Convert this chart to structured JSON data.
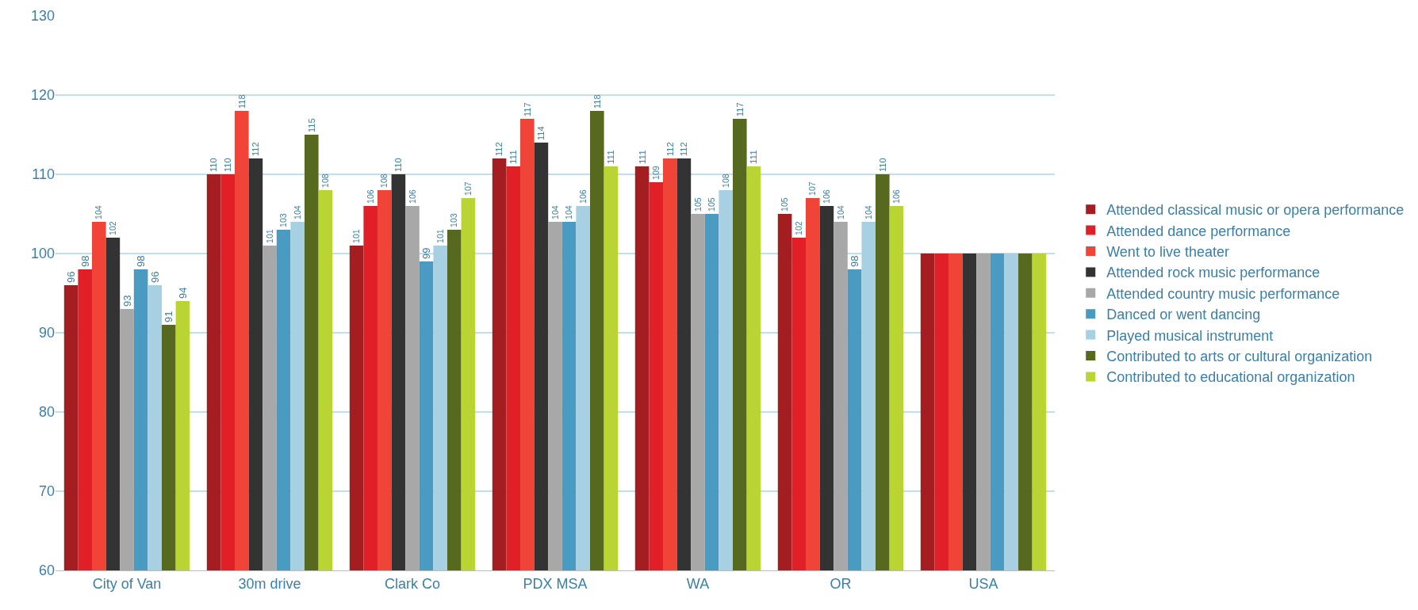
{
  "chart_data": {
    "type": "bar",
    "categories": [
      "City of Van",
      "30m drive",
      "Clark Co",
      "PDX MSA",
      "WA",
      "OR",
      "USA"
    ],
    "series": [
      {
        "name": "Attended classical music or opera performance",
        "color": "#a31d21",
        "values": [
          96,
          110,
          101,
          112,
          111,
          105,
          100
        ],
        "value_labels": [
          "96",
          "110",
          "101",
          "112",
          "111",
          "105",
          null
        ]
      },
      {
        "name": "Attended dance performance",
        "color": "#e11f26",
        "values": [
          98,
          110,
          106,
          111,
          109,
          102,
          100
        ],
        "value_labels": [
          "98",
          "110",
          "106",
          "111",
          "109",
          "102",
          null
        ]
      },
      {
        "name": "Went to live theater",
        "color": "#f04438",
        "values": [
          104,
          118,
          108,
          117,
          112,
          107,
          100
        ],
        "value_labels": [
          "104",
          "118",
          "108",
          "117",
          "112",
          "107",
          null
        ]
      },
      {
        "name": "Attended rock music performance",
        "color": "#333333",
        "values": [
          102,
          112,
          110,
          114,
          112,
          106,
          100
        ],
        "value_labels": [
          "102",
          "112",
          "110",
          "114",
          "112",
          "106",
          null
        ]
      },
      {
        "name": "Attended country music performance",
        "color": "#a8a8a8",
        "values": [
          93,
          101,
          106,
          104,
          105,
          104,
          100
        ],
        "value_labels": [
          "93",
          "101",
          "106",
          "104",
          "105",
          "104",
          null
        ]
      },
      {
        "name": "Danced or went dancing",
        "color": "#4a9bc2",
        "values": [
          98,
          103,
          99,
          104,
          105,
          98,
          100
        ],
        "value_labels": [
          "98",
          "103",
          "99",
          "104",
          "105",
          "98",
          null
        ]
      },
      {
        "name": "Played musical instrument",
        "color": "#a8d0e3",
        "values": [
          96,
          104,
          101,
          106,
          108,
          104,
          100
        ],
        "value_labels": [
          "96",
          "104",
          "101",
          "106",
          "108",
          "104",
          null
        ]
      },
      {
        "name": "Contributed to arts or cultural organization",
        "color": "#57691f",
        "values": [
          91,
          115,
          103,
          118,
          117,
          110,
          100
        ],
        "value_labels": [
          "91",
          "115",
          "103",
          "118",
          "117",
          "110",
          null
        ]
      },
      {
        "name": "Contributed to educational organization",
        "color": "#bad533",
        "values": [
          94,
          108,
          107,
          111,
          111,
          106,
          100
        ],
        "value_labels": [
          "94",
          "108",
          "107",
          "111",
          "111",
          "106",
          null
        ]
      }
    ],
    "ylim": [
      60,
      130
    ],
    "yticks": [
      60,
      70,
      80,
      90,
      100,
      110,
      120,
      130
    ],
    "grid": "y",
    "legend": "right"
  }
}
